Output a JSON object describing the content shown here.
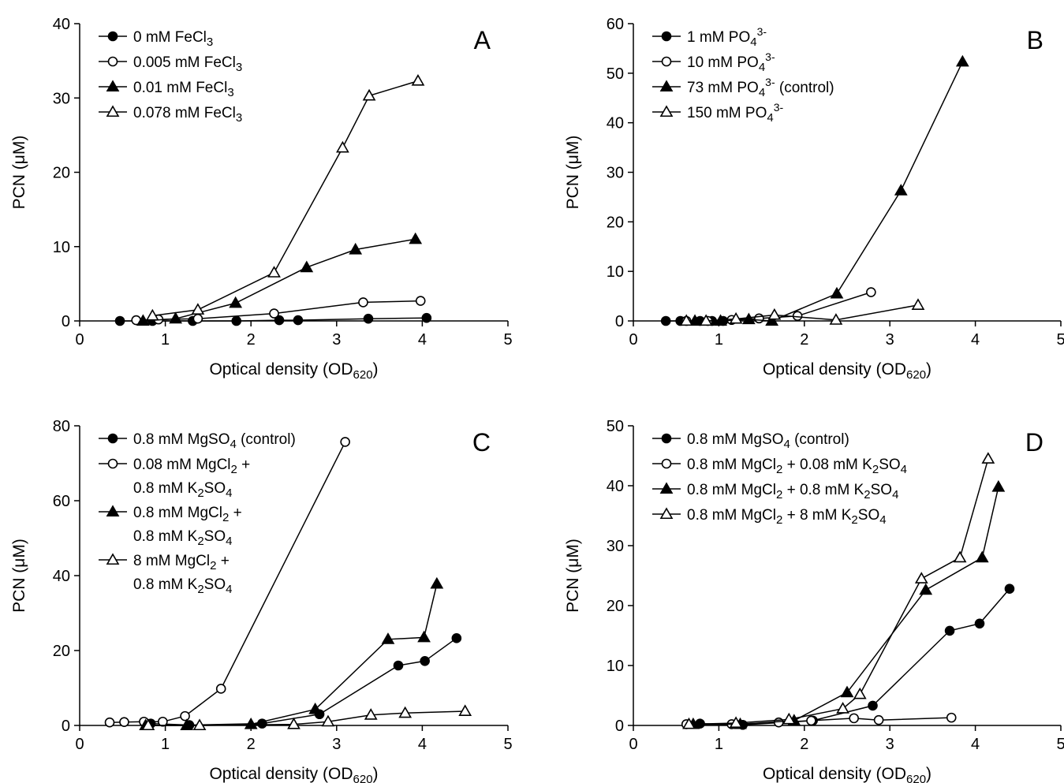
{
  "chart_data": [
    {
      "type": "line",
      "panel_label": "A",
      "xlabel": "Optical density (OD620)",
      "xlabel_parts": [
        {
          "t": "Optical density (OD"
        },
        {
          "t": "620",
          "s": "sub"
        },
        {
          "t": ")"
        }
      ],
      "ylabel": "PCN (μM)",
      "xlim": [
        0,
        5
      ],
      "ylim": [
        0,
        40
      ],
      "xticks": [
        0,
        1,
        2,
        3,
        4,
        5
      ],
      "yticks": [
        0,
        10,
        20,
        30,
        40
      ],
      "legend_position": "top-left",
      "series": [
        {
          "name": "0 mM FeCl3",
          "marker": "circle",
          "filled": true,
          "name_parts": [
            {
              "t": "0 mM FeCl"
            },
            {
              "t": "3",
              "s": "sub"
            }
          ],
          "x": [
            0.47,
            0.85,
            1.32,
            1.83,
            2.33,
            2.55,
            3.37,
            4.05
          ],
          "y": [
            0.0,
            0.0,
            0.0,
            0.0,
            0.1,
            0.1,
            0.3,
            0.4
          ]
        },
        {
          "name": "0.005 mM FeCl3",
          "marker": "circle",
          "filled": false,
          "name_parts": [
            {
              "t": "0.005 mM FeCl"
            },
            {
              "t": "3",
              "s": "sub"
            }
          ],
          "x": [
            0.66,
            0.92,
            1.38,
            2.27,
            3.31,
            3.98
          ],
          "y": [
            0.1,
            0.2,
            0.3,
            1.0,
            2.5,
            2.7
          ]
        },
        {
          "name": "0.01 mM FeCl3",
          "marker": "triangle",
          "filled": true,
          "name_parts": [
            {
              "t": "0.01 mM FeCl"
            },
            {
              "t": "3",
              "s": "sub"
            }
          ],
          "x": [
            0.74,
            1.12,
            1.82,
            2.65,
            3.22,
            3.92
          ],
          "y": [
            0.0,
            0.3,
            2.4,
            7.2,
            9.6,
            11.0
          ]
        },
        {
          "name": "0.078 mM FeCl3",
          "marker": "triangle",
          "filled": false,
          "name_parts": [
            {
              "t": "0.078 mM FeCl"
            },
            {
              "t": "3",
              "s": "sub"
            }
          ],
          "x": [
            0.85,
            1.38,
            2.27,
            3.07,
            3.38,
            3.95
          ],
          "y": [
            0.7,
            1.5,
            6.5,
            23.3,
            30.3,
            32.3
          ]
        }
      ]
    },
    {
      "type": "line",
      "panel_label": "B",
      "xlabel": "Optical density (OD620)",
      "xlabel_parts": [
        {
          "t": "Optical density (OD"
        },
        {
          "t": "620",
          "s": "sub"
        },
        {
          "t": ")"
        }
      ],
      "ylabel": "PCN (μM)",
      "xlim": [
        0,
        5
      ],
      "ylim": [
        0,
        60
      ],
      "xticks": [
        0,
        1,
        2,
        3,
        4,
        5
      ],
      "yticks": [
        0,
        10,
        20,
        30,
        40,
        50,
        60
      ],
      "legend_position": "top-left",
      "series": [
        {
          "name": "1 mM PO43-",
          "marker": "circle",
          "filled": true,
          "name_parts": [
            {
              "t": "  1 mM PO"
            },
            {
              "t": "4",
              "s": "sub"
            },
            {
              "t": "3-",
              "s": "sup"
            }
          ],
          "x": [
            0.38,
            0.55,
            0.78,
            0.92,
            1.05
          ],
          "y": [
            0.0,
            0.0,
            0.0,
            0.0,
            0.0
          ]
        },
        {
          "name": "10 mM PO43-",
          "marker": "circle",
          "filled": false,
          "name_parts": [
            {
              "t": " 10 mM PO"
            },
            {
              "t": "4",
              "s": "sub"
            },
            {
              "t": "3-",
              "s": "sup"
            }
          ],
          "x": [
            0.62,
            0.87,
            1.15,
            1.47,
            1.92,
            2.78
          ],
          "y": [
            0.0,
            0.0,
            0.2,
            0.5,
            1.0,
            5.8
          ]
        },
        {
          "name": "73 mM PO43- (control)",
          "marker": "triangle",
          "filled": true,
          "name_parts": [
            {
              "t": " 73 mM PO"
            },
            {
              "t": "4",
              "s": "sub"
            },
            {
              "t": "3-",
              "s": "sup"
            },
            {
              "t": " (control)"
            }
          ],
          "x": [
            0.72,
            1.02,
            1.35,
            1.62,
            2.38,
            3.13,
            3.85
          ],
          "y": [
            0.0,
            0.0,
            0.3,
            0.0,
            5.5,
            26.3,
            52.3
          ]
        },
        {
          "name": "150 mM PO43-",
          "marker": "triangle",
          "filled": false,
          "name_parts": [
            {
              "t": "150 mM PO"
            },
            {
              "t": "4",
              "s": "sub"
            },
            {
              "t": "3-",
              "s": "sup"
            }
          ],
          "x": [
            0.62,
            0.85,
            1.2,
            1.65,
            2.37,
            3.33
          ],
          "y": [
            0.0,
            0.0,
            0.4,
            1.2,
            0.2,
            3.2
          ]
        }
      ]
    },
    {
      "type": "line",
      "panel_label": "C",
      "xlabel": "Optical density (OD620)",
      "xlabel_parts": [
        {
          "t": "Optical density (OD"
        },
        {
          "t": "620",
          "s": "sub"
        },
        {
          "t": ")"
        }
      ],
      "ylabel": "PCN (μM)",
      "xlim": [
        0,
        5
      ],
      "ylim": [
        0,
        80
      ],
      "xticks": [
        0,
        1,
        2,
        3,
        4,
        5
      ],
      "yticks": [
        0,
        20,
        40,
        60,
        80
      ],
      "legend_position": "top-left",
      "series": [
        {
          "name": "0.8 mM MgSO4 (control)",
          "marker": "circle",
          "filled": true,
          "name_parts": [
            {
              "t": "0.8 mM MgSO"
            },
            {
              "t": "4",
              "s": "sub"
            },
            {
              "t": " (control)"
            }
          ],
          "x": [
            0.83,
            1.28,
            2.13,
            2.8,
            3.72,
            4.03,
            4.4
          ],
          "y": [
            0.5,
            0.1,
            0.5,
            3.0,
            16.0,
            17.2,
            23.3
          ]
        },
        {
          "name": "0.08 mM MgCl2 + 0.8 mM K2SO4",
          "marker": "circle",
          "filled": false,
          "name_lines": [
            [
              {
                "t": "0.08 mM MgCl"
              },
              {
                "t": "2",
                "s": "sub"
              },
              {
                "t": " +"
              }
            ],
            [
              {
                "t": "0.8 mM K"
              },
              {
                "t": "2",
                "s": "sub"
              },
              {
                "t": "SO"
              },
              {
                "t": "4",
                "s": "sub"
              }
            ]
          ],
          "x": [
            0.35,
            0.52,
            0.75,
            0.97,
            1.23,
            1.65,
            3.1
          ],
          "y": [
            0.8,
            0.9,
            1.0,
            1.0,
            2.5,
            9.8,
            75.7
          ]
        },
        {
          "name": "0.8 mM MgCl2 + 0.8 mM K2SO4",
          "marker": "triangle",
          "filled": true,
          "name_lines": [
            [
              {
                "t": "0.8 mM MgCl"
              },
              {
                "t": "2",
                "s": "sub"
              },
              {
                "t": " +"
              }
            ],
            [
              {
                "t": "0.8 mM K"
              },
              {
                "t": "2",
                "s": "sub"
              },
              {
                "t": "SO"
              },
              {
                "t": "4",
                "s": "sub"
              }
            ]
          ],
          "x": [
            0.77,
            1.25,
            2.0,
            2.75,
            3.6,
            4.02,
            4.17
          ],
          "y": [
            0.0,
            0.0,
            0.3,
            4.3,
            23.0,
            23.5,
            37.8
          ]
        },
        {
          "name": "8 mM MgCl2 + 0.8 mM K2SO4",
          "marker": "triangle",
          "filled": false,
          "name_lines": [
            [
              {
                "t": "8 mM MgCl"
              },
              {
                "t": "2",
                "s": "sub"
              },
              {
                "t": " +"
              }
            ],
            [
              {
                "t": "0.8 mM K"
              },
              {
                "t": "2",
                "s": "sub"
              },
              {
                "t": "SO"
              },
              {
                "t": "4",
                "s": "sub"
              }
            ]
          ],
          "x": [
            0.8,
            1.4,
            2.5,
            2.9,
            3.4,
            3.8,
            4.5
          ],
          "y": [
            0.0,
            0.0,
            0.3,
            1.0,
            2.8,
            3.3,
            3.8
          ]
        }
      ]
    },
    {
      "type": "line",
      "panel_label": "D",
      "xlabel": "Optical density (OD620)",
      "xlabel_parts": [
        {
          "t": "Optical density (OD"
        },
        {
          "t": "620",
          "s": "sub"
        },
        {
          "t": ")"
        }
      ],
      "ylabel": "PCN (μM)",
      "xlim": [
        0,
        5
      ],
      "ylim": [
        0,
        50
      ],
      "xticks": [
        0,
        1,
        2,
        3,
        4,
        5
      ],
      "yticks": [
        0,
        10,
        20,
        30,
        40,
        50
      ],
      "legend_position": "top-left",
      "series": [
        {
          "name": "0.8 mM MgSO4 (control)",
          "marker": "circle",
          "filled": true,
          "name_parts": [
            {
              "t": "0.8 mM MgSO"
            },
            {
              "t": "4",
              "s": "sub"
            },
            {
              "t": " (control)"
            }
          ],
          "x": [
            0.78,
            1.28,
            2.1,
            2.8,
            3.7,
            4.05,
            4.4
          ],
          "y": [
            0.3,
            0.1,
            0.8,
            3.3,
            15.8,
            17.0,
            22.8
          ]
        },
        {
          "name": "0.8 mM MgCl2 + 0.08 mM K2SO4",
          "marker": "circle",
          "filled": false,
          "name_parts": [
            {
              "t": "0.8 mM MgCl"
            },
            {
              "t": "2",
              "s": "sub"
            },
            {
              "t": " + 0.08 mM K"
            },
            {
              "t": "2",
              "s": "sub"
            },
            {
              "t": "SO"
            },
            {
              "t": "4",
              "s": "sub"
            }
          ],
          "x": [
            0.62,
            1.15,
            1.7,
            2.08,
            2.58,
            2.87,
            3.72
          ],
          "y": [
            0.2,
            0.2,
            0.5,
            0.8,
            1.2,
            0.9,
            1.3
          ]
        },
        {
          "name": "0.8 mM MgCl2 + 0.8 mM K2SO4",
          "marker": "triangle",
          "filled": true,
          "name_parts": [
            {
              "t": "0.8 mM MgCl"
            },
            {
              "t": "2",
              "s": "sub"
            },
            {
              "t": " + 0.8 mM K"
            },
            {
              "t": "2",
              "s": "sub"
            },
            {
              "t": "SO"
            },
            {
              "t": "4",
              "s": "sub"
            }
          ],
          "x": [
            0.7,
            1.25,
            1.88,
            2.5,
            3.42,
            4.08,
            4.27
          ],
          "y": [
            0.2,
            0.2,
            0.8,
            5.5,
            22.6,
            28.0,
            39.8
          ]
        },
        {
          "name": "0.8 mM MgCl2 + 8 mM K2SO4",
          "marker": "triangle",
          "filled": false,
          "name_parts": [
            {
              "t": "0.8 mM MgCl"
            },
            {
              "t": "2",
              "s": "sub"
            },
            {
              "t": " + 8 mM K"
            },
            {
              "t": "2",
              "s": "sub"
            },
            {
              "t": "SO"
            },
            {
              "t": "4",
              "s": "sub"
            }
          ],
          "x": [
            0.65,
            1.2,
            1.82,
            2.45,
            2.65,
            3.37,
            3.82,
            4.15
          ],
          "y": [
            0.2,
            0.4,
            1.0,
            2.8,
            5.2,
            24.5,
            28.0,
            44.5
          ]
        }
      ]
    }
  ]
}
